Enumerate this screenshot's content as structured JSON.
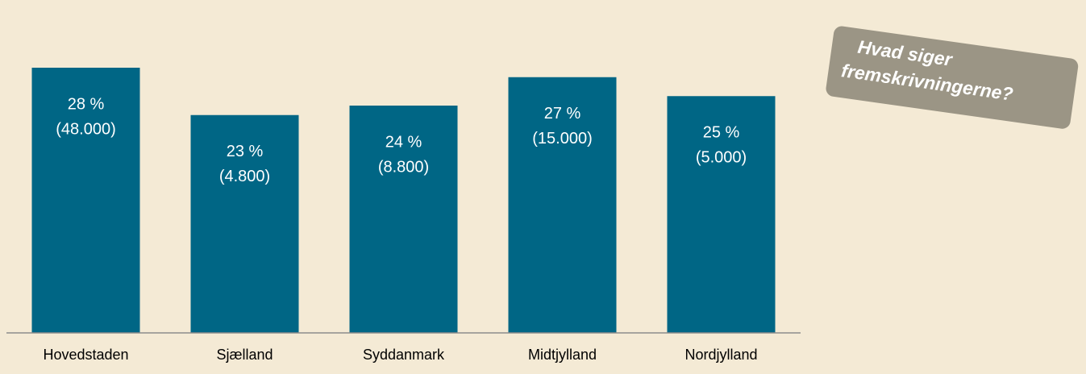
{
  "chart_data": {
    "type": "bar",
    "categories": [
      "Hovedstaden",
      "Sjælland",
      "Syddanmark",
      "Midtjylland",
      "Nordjylland"
    ],
    "values": [
      28,
      23,
      24,
      27,
      25
    ],
    "value_labels": [
      "28 %",
      "23 %",
      "24 %",
      "27 %",
      "25 %"
    ],
    "counts": [
      48000,
      4800,
      8800,
      15000,
      5000
    ],
    "count_labels": [
      "(48.000)",
      "(4.800)",
      "(8.800)",
      "(15.000)",
      "(5.000)"
    ],
    "color": "#006685",
    "ylim": [
      0,
      30
    ]
  },
  "callout": {
    "lines": [
      "Hvad siger",
      "fremskrivningerne?"
    ]
  }
}
